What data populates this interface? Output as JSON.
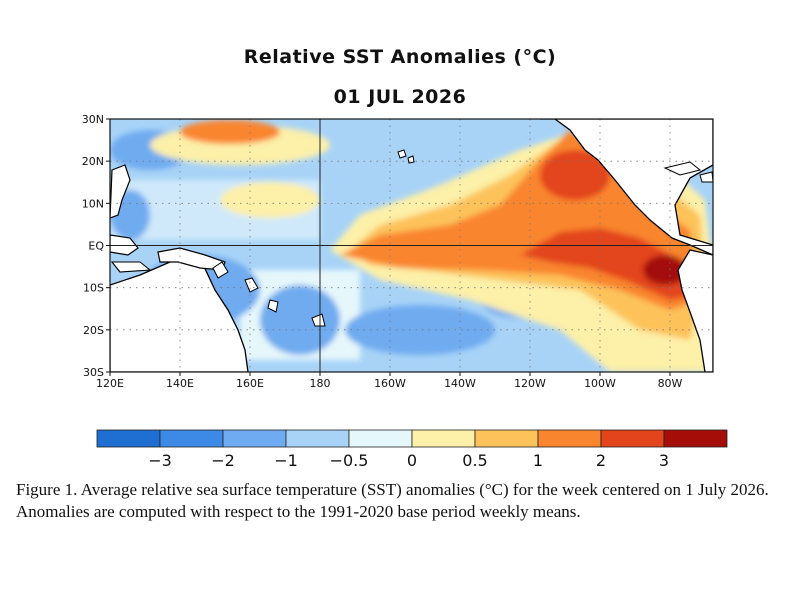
{
  "title": "Relative SST Anomalies (°C)",
  "date": "01 JUL 2026",
  "axes": {
    "lat_labels": [
      "30N",
      "20N",
      "10N",
      "EQ",
      "10S",
      "20S",
      "30S"
    ],
    "lon_labels": [
      "120E",
      "140E",
      "160E",
      "180",
      "160W",
      "140W",
      "120W",
      "100W",
      "80W"
    ]
  },
  "colorbar": {
    "labels": [
      "−3",
      "−2",
      "−1",
      "−0.5",
      "0",
      "0.5",
      "1",
      "2",
      "3"
    ],
    "colors": [
      "#1e6fd1",
      "#3c8ae6",
      "#6fabf0",
      "#a8d3f7",
      "#e6f7fb",
      "#fdf0a8",
      "#fdc25a",
      "#f9852e",
      "#e3441c",
      "#a40d08"
    ]
  },
  "caption": "Figure 1. Average relative sea surface temperature (SST) anomalies (°C) for the week centered on 1 July 2026. Anomalies are computed with respect to the 1991-2020 base period weekly means.",
  "land_color": "#ffffff"
}
